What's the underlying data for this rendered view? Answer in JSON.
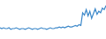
{
  "chart_data": {
    "type": "line",
    "categories": [
      null,
      null,
      null,
      null,
      null,
      null,
      null,
      null,
      null,
      null,
      null,
      null,
      null,
      null,
      null,
      null,
      null,
      null,
      null,
      null,
      null,
      null,
      null,
      null,
      null,
      null,
      null,
      null,
      null,
      null,
      null,
      null,
      null,
      null,
      null,
      null,
      null,
      null,
      null,
      null,
      null,
      null,
      null,
      null,
      null,
      null,
      null,
      null,
      null,
      null,
      null,
      null,
      null,
      null,
      null,
      null,
      null,
      null,
      null,
      null
    ],
    "values": [
      12,
      11,
      12,
      11,
      11,
      12,
      10,
      11,
      11,
      12,
      11,
      10,
      11,
      11,
      10,
      11,
      12,
      11,
      10,
      11,
      11,
      10,
      11,
      12,
      11,
      11,
      10,
      11,
      12,
      11,
      11,
      12,
      12,
      13,
      12,
      13,
      12,
      13,
      14,
      13,
      13,
      14,
      15,
      14,
      16,
      15,
      31,
      28,
      35,
      27,
      33,
      24,
      30,
      36,
      29,
      33,
      31,
      37,
      35,
      40
    ],
    "color": "#3a87c9",
    "ylim": [
      0,
      45
    ],
    "grid": false,
    "tick_labels": false
  }
}
